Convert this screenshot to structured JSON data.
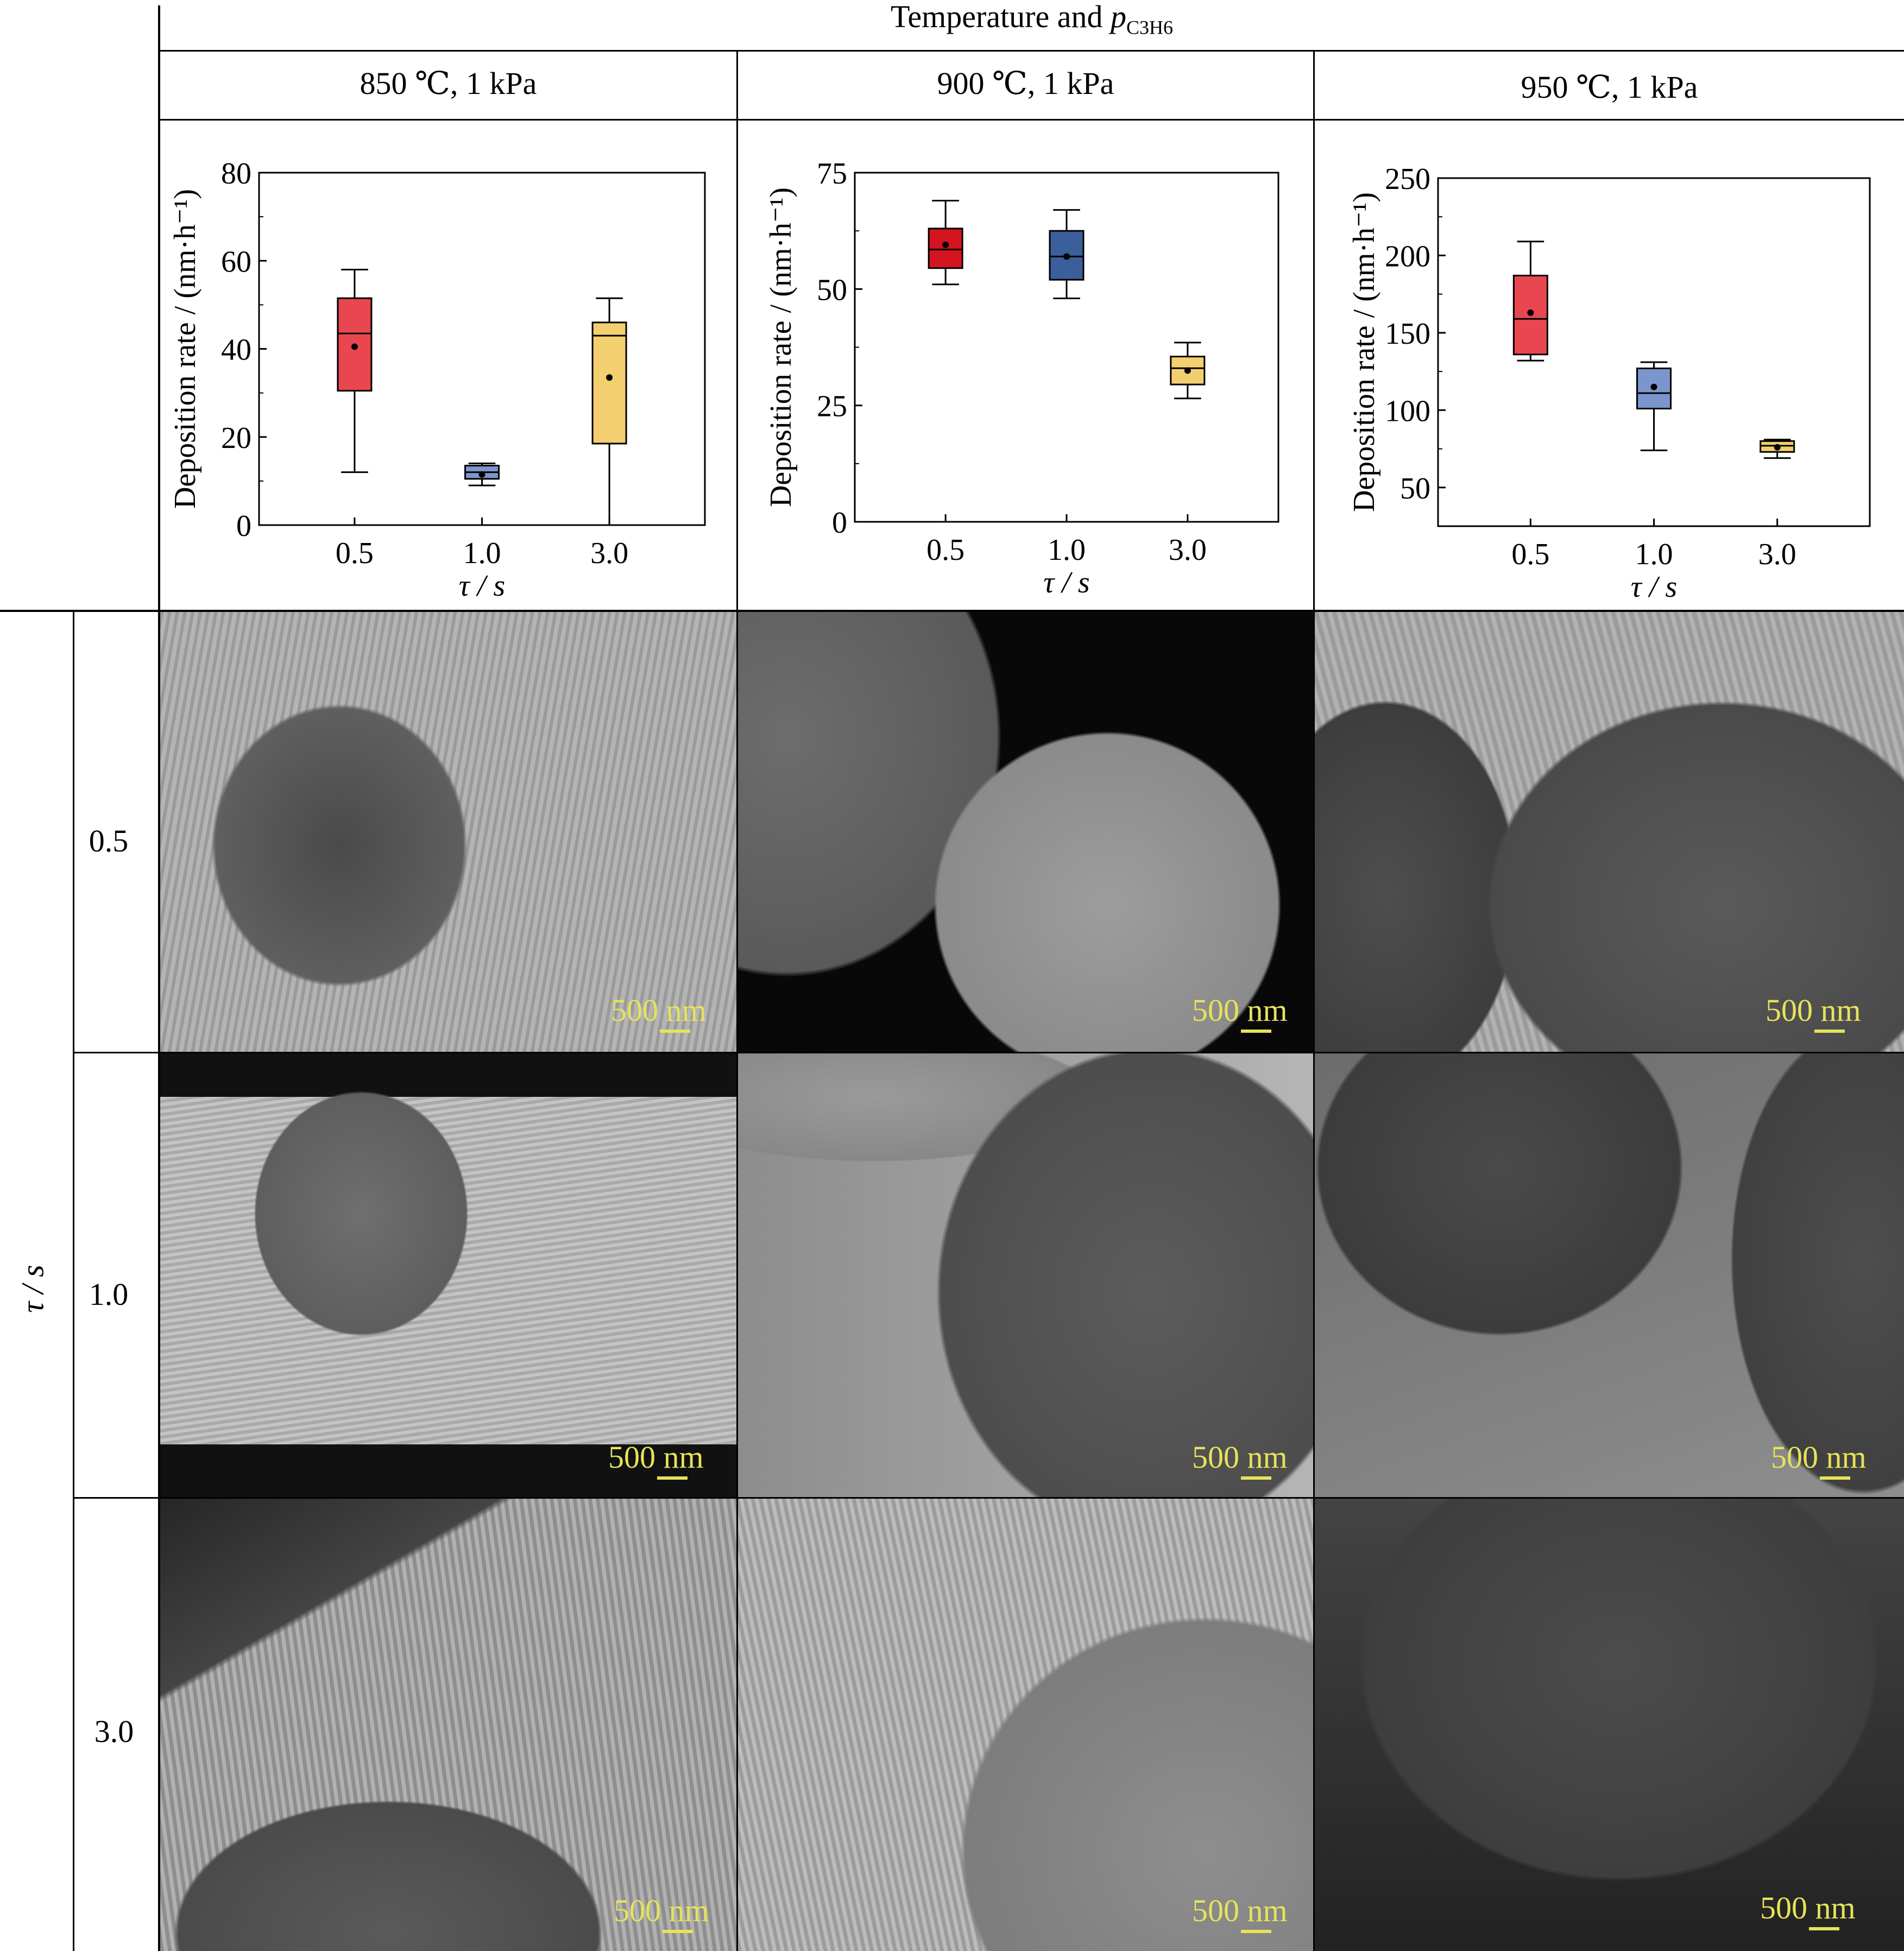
{
  "header": {
    "title_main": "Temperature and ",
    "title_p": "p",
    "title_sub": "C3H6",
    "columns": [
      "850 ℃, 1 kPa",
      "900 ℃, 1 kPa",
      "950 ℃, 1 kPa"
    ]
  },
  "row_axis": {
    "label": "τ / s",
    "rows": [
      "0.5",
      "1.0",
      "3.0"
    ]
  },
  "scale_bar": "500 nm",
  "colors": {
    "red": "#e8474f",
    "blue_light": "#7b96cd",
    "blue_dark": "#3a5f9a",
    "yellow": "#f3cf6f",
    "red_dark": "#d4151f"
  },
  "chart_data": [
    {
      "type": "box",
      "title": "850 ℃, 1 kPa",
      "xlabel": "τ / s",
      "ylabel": "Deposition rate / (nm·h⁻¹)",
      "ylim": [
        0,
        80
      ],
      "yticks": [
        0,
        20,
        40,
        60,
        80
      ],
      "categories": [
        "0.5",
        "1.0",
        "3.0"
      ],
      "boxes": [
        {
          "min": 12,
          "q1": 30.5,
          "median": 43.5,
          "q3": 51.5,
          "max": 58,
          "mean": 40.5,
          "color": "#e8474f"
        },
        {
          "min": 9,
          "q1": 10.5,
          "median": 12,
          "q3": 13.5,
          "max": 14,
          "mean": 11.5,
          "color": "#7b96cd"
        },
        {
          "min": 0,
          "q1": 18.5,
          "median": 43,
          "q3": 46,
          "max": 51.5,
          "mean": 33.5,
          "color": "#f3cf6f"
        }
      ]
    },
    {
      "type": "box",
      "title": "900 ℃, 1 kPa",
      "xlabel": "τ / s",
      "ylabel": "Deposition rate / (nm·h⁻¹)",
      "ylim": [
        0,
        75
      ],
      "yticks": [
        0,
        25,
        50,
        75
      ],
      "categories": [
        "0.5",
        "1.0",
        "3.0"
      ],
      "boxes": [
        {
          "min": 51,
          "q1": 54.5,
          "median": 58.5,
          "q3": 63,
          "max": 69,
          "mean": 59.5,
          "color": "#d4151f"
        },
        {
          "min": 48,
          "q1": 52,
          "median": 57,
          "q3": 62.5,
          "max": 67,
          "mean": 57,
          "color": "#3a5f9a"
        },
        {
          "min": 26.5,
          "q1": 29.5,
          "median": 33,
          "q3": 35.5,
          "max": 38.5,
          "mean": 32.5,
          "color": "#f3cf6f"
        }
      ]
    },
    {
      "type": "box",
      "title": "950 ℃, 1 kPa",
      "xlabel": "τ / s",
      "ylabel": "Deposition rate / (nm·h⁻¹)",
      "ylim": [
        25,
        250
      ],
      "yticks": [
        50,
        100,
        150,
        200,
        250
      ],
      "categories": [
        "0.5",
        "1.0",
        "3.0"
      ],
      "boxes": [
        {
          "min": 132,
          "q1": 136,
          "median": 159,
          "q3": 187,
          "max": 209,
          "mean": 163,
          "color": "#e8474f"
        },
        {
          "min": 74,
          "q1": 101,
          "median": 111,
          "q3": 127,
          "max": 131,
          "mean": 115,
          "color": "#7b96cd"
        },
        {
          "min": 69,
          "q1": 73,
          "median": 77,
          "q3": 80,
          "max": 81,
          "mean": 76,
          "color": "#f3cf6f"
        }
      ]
    }
  ]
}
